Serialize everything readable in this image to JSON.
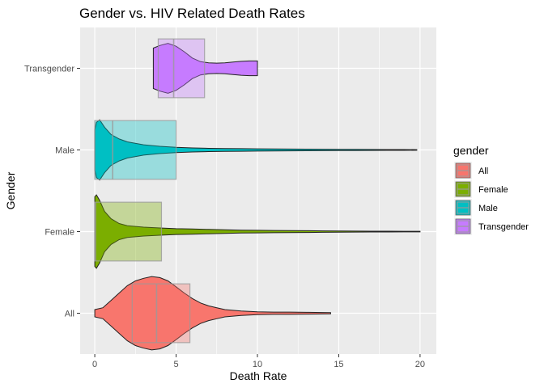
{
  "chart_data": {
    "type": "violin",
    "title": "Gender vs. HIV Related Death Rates",
    "xlabel": "Death Rate",
    "ylabel": "Gender",
    "xlim": [
      -0.9,
      21
    ],
    "xticks": [
      0,
      5,
      10,
      15,
      20
    ],
    "xtick_labels": [
      "0",
      "5",
      "10",
      "15",
      "20"
    ],
    "categories": [
      "All",
      "Female",
      "Male",
      "Transgender"
    ],
    "legend": {
      "title": "gender",
      "position": "right",
      "entries": [
        "All",
        "Female",
        "Male",
        "Transgender"
      ]
    },
    "grid": true,
    "series": [
      {
        "name": "All",
        "color": "#F8766D",
        "min": 0.0,
        "max": 14.5,
        "box": {
          "q1": 2.3,
          "median": 3.8,
          "q3": 5.85
        },
        "density": [
          [
            0.0,
            0.1
          ],
          [
            0.5,
            0.15
          ],
          [
            1.0,
            0.35
          ],
          [
            1.5,
            0.55
          ],
          [
            2.0,
            0.75
          ],
          [
            2.5,
            0.88
          ],
          [
            3.0,
            0.95
          ],
          [
            3.5,
            1.0
          ],
          [
            4.0,
            0.97
          ],
          [
            4.5,
            0.88
          ],
          [
            5.0,
            0.72
          ],
          [
            5.5,
            0.55
          ],
          [
            6.0,
            0.4
          ],
          [
            6.5,
            0.28
          ],
          [
            7.0,
            0.2
          ],
          [
            7.5,
            0.15
          ],
          [
            8.0,
            0.1
          ],
          [
            9.0,
            0.06
          ],
          [
            10.0,
            0.04
          ],
          [
            11.0,
            0.03
          ],
          [
            12.0,
            0.03
          ],
          [
            13.0,
            0.025
          ],
          [
            14.0,
            0.02
          ],
          [
            14.5,
            0.015
          ]
        ]
      },
      {
        "name": "Female",
        "color": "#7CAE00",
        "min": 0.0,
        "max": 20.0,
        "box": {
          "q1": 0.0,
          "median": 0.05,
          "q3": 4.1
        },
        "density": [
          [
            0.0,
            0.95
          ],
          [
            0.1,
            1.0
          ],
          [
            0.3,
            0.85
          ],
          [
            0.6,
            0.55
          ],
          [
            1.0,
            0.35
          ],
          [
            1.5,
            0.22
          ],
          [
            2.0,
            0.16
          ],
          [
            3.0,
            0.12
          ],
          [
            4.0,
            0.1
          ],
          [
            5.0,
            0.08
          ],
          [
            6.0,
            0.07
          ],
          [
            7.0,
            0.06
          ],
          [
            8.0,
            0.05
          ],
          [
            9.0,
            0.04
          ],
          [
            10.0,
            0.035
          ],
          [
            11.0,
            0.03
          ],
          [
            12.0,
            0.028
          ],
          [
            13.0,
            0.024
          ],
          [
            14.0,
            0.02
          ],
          [
            15.0,
            0.017
          ],
          [
            16.0,
            0.014
          ],
          [
            17.0,
            0.012
          ],
          [
            18.0,
            0.01
          ],
          [
            19.0,
            0.009
          ],
          [
            20.0,
            0.008
          ]
        ]
      },
      {
        "name": "Male",
        "color": "#00BFC4",
        "min": 0.0,
        "max": 19.8,
        "box": {
          "q1": 0.0,
          "median": 1.1,
          "q3": 5.0
        },
        "density": [
          [
            0.0,
            0.55
          ],
          [
            0.1,
            0.75
          ],
          [
            0.3,
            0.82
          ],
          [
            0.6,
            0.62
          ],
          [
            1.0,
            0.42
          ],
          [
            1.5,
            0.3
          ],
          [
            2.0,
            0.22
          ],
          [
            3.0,
            0.14
          ],
          [
            4.0,
            0.1
          ],
          [
            5.0,
            0.07
          ],
          [
            6.0,
            0.055
          ],
          [
            7.0,
            0.045
          ],
          [
            8.0,
            0.04
          ],
          [
            9.0,
            0.035
          ],
          [
            10.0,
            0.03
          ],
          [
            11.0,
            0.027
          ],
          [
            12.0,
            0.025
          ],
          [
            13.0,
            0.022
          ],
          [
            14.0,
            0.02
          ],
          [
            15.0,
            0.018
          ],
          [
            16.0,
            0.016
          ],
          [
            17.0,
            0.014
          ],
          [
            18.0,
            0.012
          ],
          [
            19.0,
            0.01
          ],
          [
            19.8,
            0.008
          ]
        ]
      },
      {
        "name": "Transgender",
        "color": "#C77CFF",
        "min": 3.6,
        "max": 10.0,
        "box": {
          "q1": 3.9,
          "median": 4.85,
          "q3": 6.75
        },
        "density": [
          [
            3.6,
            0.55
          ],
          [
            4.0,
            0.62
          ],
          [
            4.5,
            0.68
          ],
          [
            5.0,
            0.6
          ],
          [
            5.5,
            0.45
          ],
          [
            6.0,
            0.28
          ],
          [
            6.5,
            0.18
          ],
          [
            7.0,
            0.15
          ],
          [
            7.5,
            0.14
          ],
          [
            8.0,
            0.15
          ],
          [
            8.5,
            0.17
          ],
          [
            9.0,
            0.19
          ],
          [
            9.5,
            0.2
          ],
          [
            10.0,
            0.2
          ]
        ]
      }
    ]
  }
}
